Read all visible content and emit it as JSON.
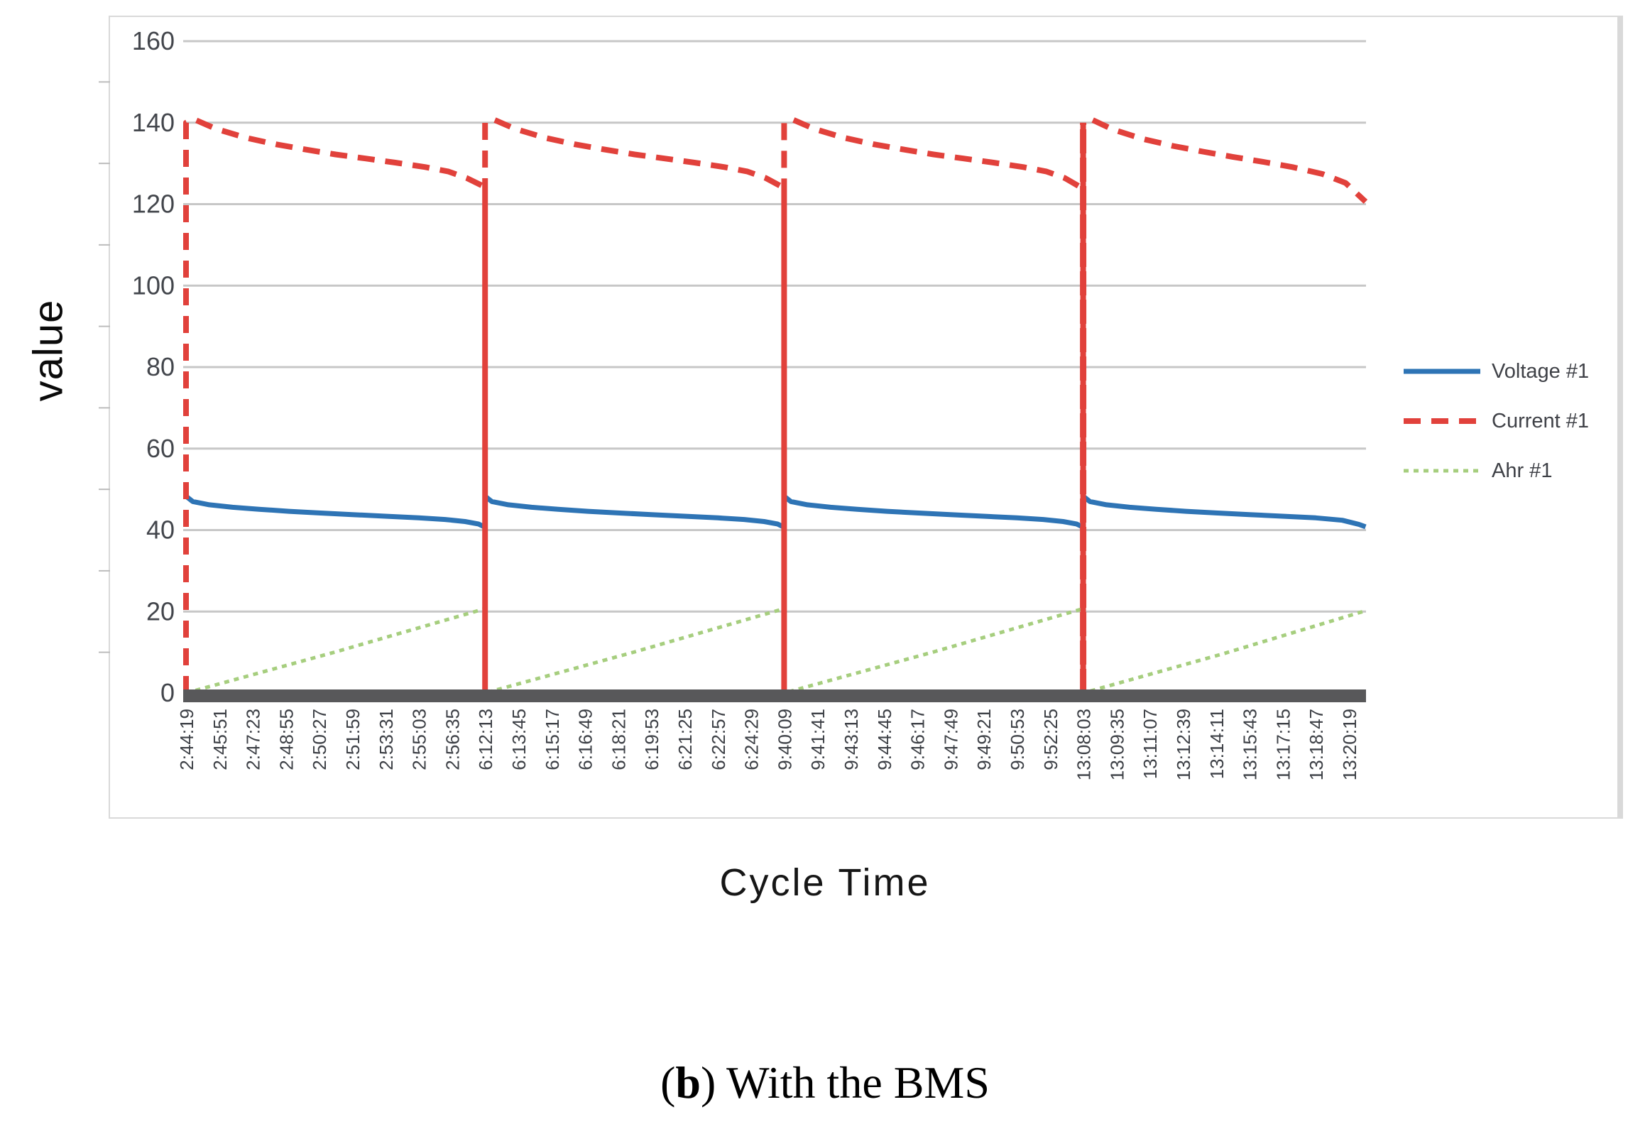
{
  "figure": {
    "caption": {
      "open": "(",
      "bold": "b",
      "rest": ") With the BMS"
    }
  },
  "chart_data": {
    "type": "line",
    "title": "",
    "xlabel": "Cycle Time",
    "ylabel": "value",
    "ylim": [
      0,
      160
    ],
    "grid": "horizontal",
    "legend_position": "right",
    "y_ticks": [
      0,
      20,
      40,
      60,
      80,
      100,
      120,
      140,
      160
    ],
    "y_minor_ticks": [
      10,
      30,
      50,
      70,
      90,
      110,
      130,
      150
    ],
    "x_ticklabels": [
      "2:44:19",
      "2:45:51",
      "2:47:23",
      "2:48:55",
      "2:50:27",
      "2:51:59",
      "2:53:31",
      "2:55:03",
      "2:56:35",
      "6:12:13",
      "6:13:45",
      "6:15:17",
      "6:16:49",
      "6:18:21",
      "6:19:53",
      "6:21:25",
      "6:22:57",
      "6:24:29",
      "9:40:09",
      "9:41:41",
      "9:43:13",
      "9:44:45",
      "9:46:17",
      "9:47:49",
      "9:49:21",
      "9:50:53",
      "9:52:25",
      "13:08:03",
      "13:09:35",
      "13:11:07",
      "13:12:39",
      "13:14:11",
      "13:15:43",
      "13:17:15",
      "13:18:47",
      "13:20:19"
    ],
    "x_index_range": [
      0,
      35.5
    ],
    "cycle_start_indices": [
      0,
      9,
      18,
      27
    ],
    "axis_colors": {
      "grid": "#c7c7c7",
      "axis_bar": "#58585a",
      "tick_text": "#3d4046",
      "y_tick_text": "#43464c",
      "frame": "#d9d9d9",
      "minor_tick": "#bcbcbc"
    },
    "legend": [
      {
        "label": "Voltage #1",
        "color": "#2e74b5",
        "style": "solid"
      },
      {
        "label": "Current #1",
        "color": "#e1413b",
        "style": "dashed"
      },
      {
        "label": "Ahr #1",
        "color": "#a6ce7e",
        "style": "dotted"
      }
    ],
    "series": [
      {
        "name": "Ahr #1",
        "color": "#a6ce7e",
        "style": "dotted",
        "width": 5,
        "points": [
          [
            0,
            0
          ],
          [
            4.5,
            10.1
          ],
          [
            9,
            20.7
          ],
          [
            9,
            0
          ],
          [
            13.5,
            10.1
          ],
          [
            18,
            20.7
          ],
          [
            18,
            0
          ],
          [
            22.5,
            10.1
          ],
          [
            27,
            20.7
          ],
          [
            27,
            0
          ],
          [
            31.2,
            9.6
          ],
          [
            35.5,
            20.2
          ]
        ]
      },
      {
        "name": "Voltage #1",
        "color": "#2e74b5",
        "style": "solid",
        "width": 7,
        "points": [
          [
            0,
            48.3
          ],
          [
            0.2,
            47.0
          ],
          [
            0.7,
            46.2
          ],
          [
            1.4,
            45.6
          ],
          [
            2.2,
            45.1
          ],
          [
            3.1,
            44.6
          ],
          [
            4.0,
            44.2
          ],
          [
            5.0,
            43.8
          ],
          [
            6.0,
            43.4
          ],
          [
            7.0,
            43.0
          ],
          [
            7.8,
            42.6
          ],
          [
            8.4,
            42.1
          ],
          [
            8.8,
            41.5
          ],
          [
            9,
            40.7
          ],
          [
            9,
            48.3
          ],
          [
            9.2,
            47.0
          ],
          [
            9.7,
            46.2
          ],
          [
            10.4,
            45.6
          ],
          [
            11.2,
            45.1
          ],
          [
            12.1,
            44.6
          ],
          [
            13.0,
            44.2
          ],
          [
            14.0,
            43.8
          ],
          [
            15.0,
            43.4
          ],
          [
            16.0,
            43.0
          ],
          [
            16.8,
            42.6
          ],
          [
            17.4,
            42.1
          ],
          [
            17.8,
            41.5
          ],
          [
            18,
            40.7
          ],
          [
            18,
            48.3
          ],
          [
            18.2,
            47.0
          ],
          [
            18.7,
            46.2
          ],
          [
            19.4,
            45.6
          ],
          [
            20.2,
            45.1
          ],
          [
            21.1,
            44.6
          ],
          [
            22.0,
            44.2
          ],
          [
            23.0,
            43.8
          ],
          [
            24.0,
            43.4
          ],
          [
            25.0,
            43.0
          ],
          [
            25.8,
            42.6
          ],
          [
            26.4,
            42.1
          ],
          [
            26.8,
            41.5
          ],
          [
            27,
            40.7
          ],
          [
            27,
            48.3
          ],
          [
            27.2,
            47.0
          ],
          [
            27.7,
            46.2
          ],
          [
            28.4,
            45.6
          ],
          [
            29.2,
            45.1
          ],
          [
            30.1,
            44.6
          ],
          [
            31.0,
            44.2
          ],
          [
            32.0,
            43.8
          ],
          [
            33.0,
            43.4
          ],
          [
            34.0,
            43.0
          ],
          [
            34.8,
            42.4
          ],
          [
            35.3,
            41.4
          ],
          [
            35.5,
            40.8
          ]
        ]
      },
      {
        "name": "Current #1",
        "color": "#e1413b",
        "style": "dashed",
        "width": 8,
        "points": [
          [
            0,
            0
          ],
          [
            0,
            140
          ],
          [
            0.25,
            140.8
          ],
          [
            0.9,
            138.5
          ],
          [
            1.8,
            136.3
          ],
          [
            2.7,
            134.7
          ],
          [
            3.6,
            133.4
          ],
          [
            4.5,
            132.2
          ],
          [
            5.4,
            131.2
          ],
          [
            6.3,
            130.2
          ],
          [
            7.2,
            129.1
          ],
          [
            7.9,
            128.0
          ],
          [
            8.45,
            126.4
          ],
          [
            9,
            124.2
          ],
          [
            9,
            0
          ],
          [
            9,
            140
          ],
          [
            9.25,
            140.8
          ],
          [
            9.9,
            138.5
          ],
          [
            10.8,
            136.3
          ],
          [
            11.7,
            134.7
          ],
          [
            12.6,
            133.4
          ],
          [
            13.5,
            132.2
          ],
          [
            14.4,
            131.2
          ],
          [
            15.3,
            130.2
          ],
          [
            16.2,
            129.1
          ],
          [
            16.9,
            128.0
          ],
          [
            17.45,
            126.4
          ],
          [
            18,
            124.0
          ],
          [
            18,
            0
          ],
          [
            18,
            140
          ],
          [
            18.25,
            140.8
          ],
          [
            18.9,
            138.5
          ],
          [
            19.8,
            136.3
          ],
          [
            20.7,
            134.7
          ],
          [
            21.6,
            133.4
          ],
          [
            22.5,
            132.2
          ],
          [
            23.4,
            131.2
          ],
          [
            24.3,
            130.2
          ],
          [
            25.2,
            129.1
          ],
          [
            25.9,
            128.0
          ],
          [
            26.45,
            126.4
          ],
          [
            27,
            123.8
          ],
          [
            27,
            0
          ],
          [
            27,
            140
          ],
          [
            27.25,
            140.8
          ],
          [
            27.9,
            138.3
          ],
          [
            28.8,
            136.0
          ],
          [
            29.7,
            134.3
          ],
          [
            30.6,
            132.9
          ],
          [
            31.5,
            131.6
          ],
          [
            32.4,
            130.4
          ],
          [
            33.3,
            129.1
          ],
          [
            34.2,
            127.4
          ],
          [
            34.9,
            125.2
          ],
          [
            35.5,
            120.6
          ]
        ]
      },
      {
        "name": "Current #1 spike 4",
        "color": "#e1413b",
        "style": "dense",
        "width": 9,
        "points": [
          [
            27,
            0
          ],
          [
            27,
            140
          ]
        ]
      }
    ]
  }
}
